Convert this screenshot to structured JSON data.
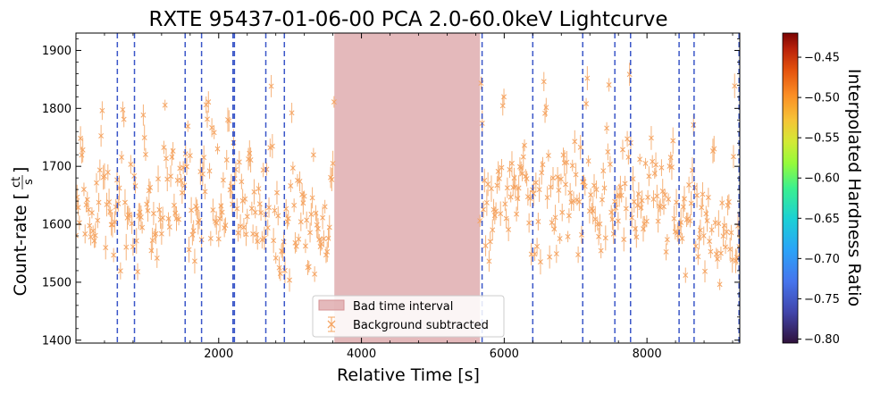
{
  "chart_data": {
    "type": "scatter",
    "title": "RXTE 95437-01-06-00 PCA 2.0-60.0keV Lightcurve",
    "xlabel": "Relative Time [s]",
    "ylabel": "Count-rate [ct/s]",
    "ylabel_main": "Count-rate [",
    "ylabel_num": "ct",
    "ylabel_den": "s",
    "ylabel_close": "]",
    "xlim": [
      0,
      9300
    ],
    "ylim": [
      1395,
      1930
    ],
    "xticks": [
      2000,
      4000,
      6000,
      8000
    ],
    "xtick_labels": [
      "2000",
      "4000",
      "6000",
      "8000"
    ],
    "yticks": [
      1400,
      1500,
      1600,
      1700,
      1800,
      1900
    ],
    "ytick_labels": [
      "1400",
      "1500",
      "1600",
      "1700",
      "1800",
      "1900"
    ],
    "bad_time_interval": [
      3620,
      5660
    ],
    "dashed_vlines": [
      580,
      820,
      1530,
      1760,
      2200,
      2220,
      2660,
      2920,
      5690,
      6400,
      7100,
      7550,
      7770,
      8450,
      8660,
      9290
    ],
    "series": [
      {
        "name": "Background subtracted",
        "color": "#f5a462",
        "marker": "x",
        "segments": [
          [
            0,
            3620
          ],
          [
            5660,
            9300
          ]
        ],
        "mean": 1610,
        "spread": 45,
        "flare_amp": 170,
        "step": 16
      }
    ],
    "legend": [
      "Bad time interval",
      "Background subtracted"
    ],
    "legend_loc": "lower-center",
    "colorbar": {
      "label": "Interpolated Hardness Ratio",
      "min": -0.805,
      "max": -0.42,
      "ticks": [
        -0.8,
        -0.75,
        -0.7,
        -0.65,
        -0.6,
        -0.55,
        -0.5,
        -0.45
      ],
      "tick_labels": [
        "−0.80",
        "−0.75",
        "−0.70",
        "−0.65",
        "−0.60",
        "−0.55",
        "−0.50",
        "−0.45"
      ],
      "colormap": "turbo"
    },
    "colors": {
      "bad_interval": "#d69396",
      "vline": "#3a56c8",
      "points": "#f5a462"
    }
  }
}
